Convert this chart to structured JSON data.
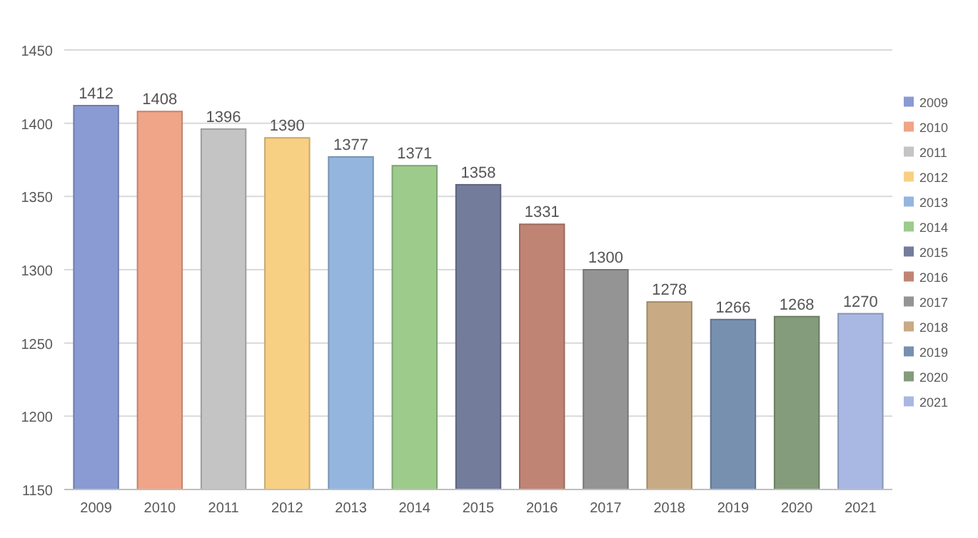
{
  "chart_data": {
    "type": "bar",
    "categories": [
      "2009",
      "2010",
      "2011",
      "2012",
      "2013",
      "2014",
      "2015",
      "2016",
      "2017",
      "2018",
      "2019",
      "2020",
      "2021"
    ],
    "series": [
      {
        "name": "2009",
        "color": "#8a9ad2",
        "values": [
          1412,
          null,
          null,
          null,
          null,
          null,
          null,
          null,
          null,
          null,
          null,
          null,
          null
        ]
      },
      {
        "name": "2010",
        "color": "#f0a488",
        "values": [
          null,
          1408,
          null,
          null,
          null,
          null,
          null,
          null,
          null,
          null,
          null,
          null,
          null
        ]
      },
      {
        "name": "2011",
        "color": "#c4c4c4",
        "values": [
          null,
          null,
          1396,
          null,
          null,
          null,
          null,
          null,
          null,
          null,
          null,
          null,
          null
        ]
      },
      {
        "name": "2012",
        "color": "#f8d084",
        "values": [
          null,
          null,
          null,
          1390,
          null,
          null,
          null,
          null,
          null,
          null,
          null,
          null,
          null
        ]
      },
      {
        "name": "2013",
        "color": "#94b6de",
        "values": [
          null,
          null,
          null,
          null,
          1377,
          null,
          null,
          null,
          null,
          null,
          null,
          null,
          null
        ]
      },
      {
        "name": "2014",
        "color": "#9ccb8c",
        "values": [
          null,
          null,
          null,
          null,
          null,
          1371,
          null,
          null,
          null,
          null,
          null,
          null,
          null
        ]
      },
      {
        "name": "2015",
        "color": "#747c9c",
        "values": [
          null,
          null,
          null,
          null,
          null,
          null,
          1358,
          null,
          null,
          null,
          null,
          null,
          null
        ]
      },
      {
        "name": "2016",
        "color": "#c08474",
        "values": [
          null,
          null,
          null,
          null,
          null,
          null,
          null,
          1331,
          null,
          null,
          null,
          null,
          null
        ]
      },
      {
        "name": "2017",
        "color": "#949494",
        "values": [
          null,
          null,
          null,
          null,
          null,
          null,
          null,
          null,
          1300,
          null,
          null,
          null,
          null
        ]
      },
      {
        "name": "2018",
        "color": "#c8aa84",
        "values": [
          null,
          null,
          null,
          null,
          null,
          null,
          null,
          null,
          null,
          1278,
          null,
          null,
          null
        ]
      },
      {
        "name": "2019",
        "color": "#7890b0",
        "values": [
          null,
          null,
          null,
          null,
          null,
          null,
          null,
          null,
          null,
          null,
          1266,
          null,
          null
        ]
      },
      {
        "name": "2020",
        "color": "#849c7c",
        "values": [
          null,
          null,
          null,
          null,
          null,
          null,
          null,
          null,
          null,
          null,
          null,
          1268,
          null
        ]
      },
      {
        "name": "2021",
        "color": "#a8b8e2",
        "values": [
          null,
          null,
          null,
          null,
          null,
          null,
          null,
          null,
          null,
          null,
          null,
          null,
          1270
        ]
      }
    ],
    "ylim": [
      1150,
      1450
    ],
    "yticks": [
      1150,
      1200,
      1250,
      1300,
      1350,
      1400,
      1450
    ],
    "grid": "y",
    "data_labels": true,
    "legend": "right"
  }
}
